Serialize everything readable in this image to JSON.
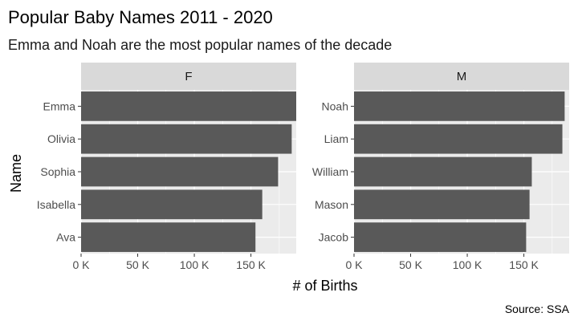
{
  "chart_data": {
    "type": "bar",
    "orientation": "horizontal",
    "title": "Popular Baby Names 2011 - 2020",
    "subtitle": "Emma and Noah are the most popular names of the decade",
    "caption": "Source: SSA",
    "xlabel": "# of Births",
    "ylabel": "Name",
    "xlim": [
      0,
      190000
    ],
    "x_ticks": [
      0,
      50000,
      100000,
      150000
    ],
    "x_tick_labels": [
      "0 K",
      "50 K",
      "100 K",
      "150 K"
    ],
    "grid": true,
    "bar_color": "#595959",
    "panel_bg": "#ebebeb",
    "strip_bg": "#d9d9d9",
    "facets": [
      {
        "label": "F",
        "categories": [
          "Emma",
          "Olivia",
          "Sophia",
          "Isabella",
          "Ava"
        ],
        "values": [
          194000,
          186000,
          174000,
          160000,
          154000
        ]
      },
      {
        "label": "M",
        "categories": [
          "Noah",
          "Liam",
          "William",
          "Mason",
          "Jacob"
        ],
        "values": [
          186000,
          184000,
          157000,
          155000,
          152000
        ]
      }
    ]
  }
}
